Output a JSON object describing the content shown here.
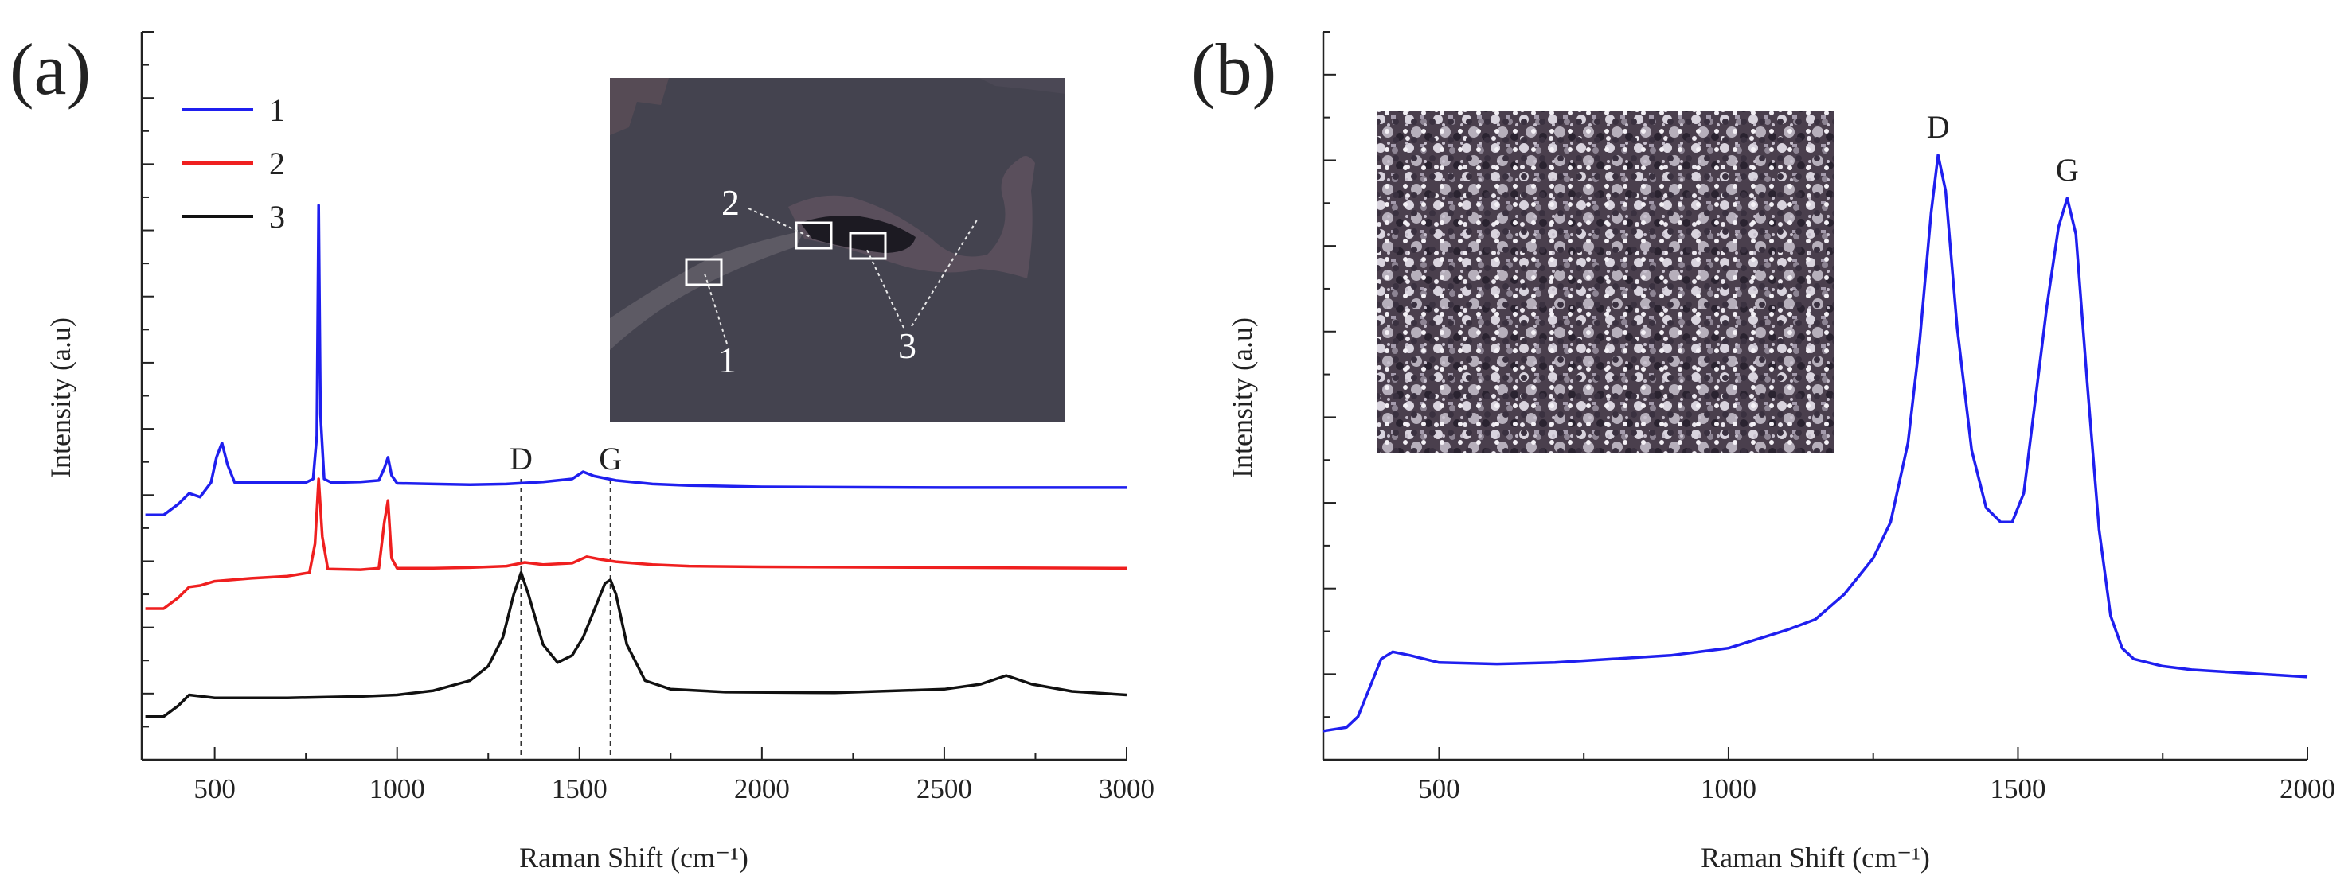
{
  "chart_data": [
    {
      "panel": "(a)",
      "type": "line",
      "xlabel": "Raman Shift (cm⁻¹)",
      "ylabel": "Intensity (a.u)",
      "xlim": [
        300,
        3000
      ],
      "ylim": [
        0,
        100
      ],
      "x_ticks": [
        500,
        1000,
        1500,
        2000,
        2500,
        3000
      ],
      "x_tick_labels": [
        "500",
        "1000",
        "1500",
        "2000",
        "2500",
        "3000"
      ],
      "legend_position": "top-left",
      "series": [
        {
          "name": "1",
          "color": "#1f1fef",
          "description": "Si-substrate-like spectrum with peaks near 520, 785, 970 cm⁻¹ and weak D/G bands",
          "x": [
            310,
            360,
            400,
            430,
            460,
            490,
            505,
            520,
            535,
            555,
            600,
            650,
            700,
            750,
            770,
            780,
            785,
            790,
            800,
            820,
            900,
            950,
            965,
            975,
            985,
            1000,
            1100,
            1200,
            1300,
            1400,
            1480,
            1510,
            1540,
            1600,
            1700,
            1800,
            2000,
            2500,
            3000
          ],
          "y": [
            34,
            34,
            35.5,
            37,
            36.5,
            38.5,
            42,
            44,
            41,
            38.5,
            38.5,
            38.5,
            38.5,
            38.5,
            39,
            45,
            77,
            48,
            39,
            38.5,
            38.6,
            38.8,
            40.5,
            42,
            39.5,
            38.4,
            38.3,
            38.2,
            38.3,
            38.6,
            39,
            40,
            39.4,
            38.8,
            38.3,
            38.1,
            37.9,
            37.8,
            37.8
          ]
        },
        {
          "name": "2",
          "color": "#ef1f1f",
          "description": "Spectrum with peaks near 785 and 970 cm⁻¹ and weak D/G bands",
          "x": [
            310,
            360,
            400,
            430,
            460,
            500,
            600,
            700,
            760,
            775,
            785,
            795,
            810,
            900,
            950,
            965,
            975,
            985,
            1000,
            1100,
            1200,
            1300,
            1350,
            1400,
            1480,
            1520,
            1560,
            1600,
            1700,
            1800,
            2000,
            2500,
            3000
          ],
          "y": [
            21,
            21,
            22.5,
            24,
            24.2,
            24.8,
            25.2,
            25.5,
            26,
            30,
            39,
            31,
            26.5,
            26.4,
            26.6,
            33,
            36,
            28,
            26.6,
            26.6,
            26.7,
            26.9,
            27.4,
            27.1,
            27.3,
            28.2,
            27.8,
            27.5,
            27.1,
            26.9,
            26.8,
            26.7,
            26.6
          ]
        },
        {
          "name": "3",
          "color": "#111111",
          "description": "Carbon spectrum with D band near 1340 cm⁻¹ and G band near 1585 cm⁻¹",
          "x": [
            310,
            360,
            400,
            430,
            500,
            700,
            900,
            1000,
            1100,
            1200,
            1250,
            1290,
            1320,
            1340,
            1360,
            1400,
            1440,
            1480,
            1510,
            1550,
            1570,
            1585,
            1600,
            1630,
            1680,
            1750,
            1900,
            2200,
            2500,
            2600,
            2670,
            2740,
            2850,
            3000
          ],
          "y": [
            6,
            6,
            7.5,
            9,
            8.6,
            8.6,
            8.8,
            9,
            9.6,
            11,
            13,
            17,
            23,
            26,
            23,
            16,
            13.5,
            14.5,
            17,
            22,
            24.5,
            25,
            23,
            16,
            11,
            9.8,
            9.4,
            9.3,
            9.8,
            10.5,
            11.7,
            10.5,
            9.5,
            9
          ]
        }
      ],
      "annotations": [
        {
          "text": "D",
          "x": 1340
        },
        {
          "text": "G",
          "x": 1585
        }
      ],
      "inset": {
        "description": "optical micrograph, dark grey surface",
        "labels": [
          "1",
          "2",
          "3"
        ]
      }
    },
    {
      "panel": "(b)",
      "type": "line",
      "xlabel": "Raman Shift (cm⁻¹)",
      "ylabel": "Intensity (a.u)",
      "xlim": [
        300,
        2000
      ],
      "ylim": [
        0,
        100
      ],
      "x_ticks": [
        500,
        1000,
        1500,
        2000
      ],
      "x_tick_labels": [
        "500",
        "1000",
        "1500",
        "2000"
      ],
      "series": [
        {
          "name": "spectrum",
          "color": "#1f1fef",
          "x": [
            300,
            340,
            360,
            380,
            400,
            420,
            450,
            500,
            600,
            700,
            800,
            900,
            1000,
            1100,
            1150,
            1200,
            1250,
            1280,
            1310,
            1330,
            1350,
            1362,
            1375,
            1395,
            1420,
            1445,
            1470,
            1490,
            1510,
            1530,
            1550,
            1570,
            1585,
            1600,
            1620,
            1640,
            1660,
            1680,
            1700,
            1750,
            1800,
            1900,
            2000
          ],
          "y": [
            4,
            4.5,
            6,
            10,
            14,
            15,
            14.5,
            13.5,
            13.3,
            13.5,
            14,
            14.5,
            15.5,
            18,
            19.5,
            23,
            28,
            33,
            44,
            58,
            76,
            84,
            79,
            60,
            43,
            35,
            33,
            33,
            37,
            50,
            63,
            74,
            78,
            73,
            52,
            32,
            20,
            15.5,
            14,
            13,
            12.5,
            12,
            11.5
          ]
        }
      ],
      "annotations": [
        {
          "text": "D",
          "x": 1362
        },
        {
          "text": "G",
          "x": 1585
        }
      ],
      "inset": {
        "description": "optical micrograph, granular silver/purple texture"
      }
    }
  ]
}
